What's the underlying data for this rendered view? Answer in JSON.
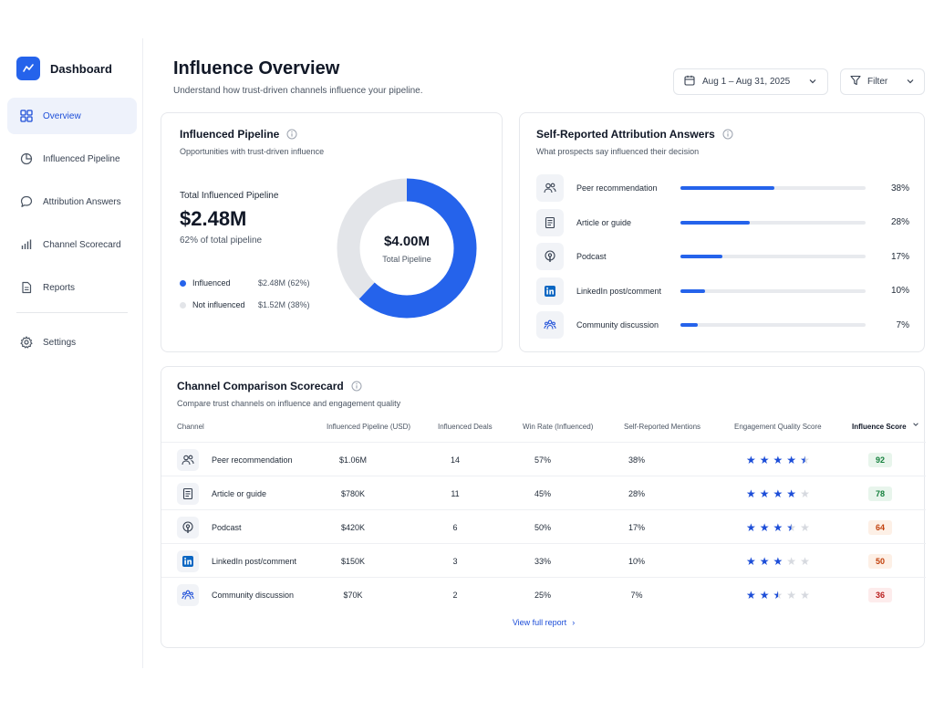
{
  "app": {
    "title": "Dashboard",
    "accent": "#2563eb"
  },
  "sidebar": {
    "items": [
      {
        "label": "Overview",
        "icon": "grid-icon",
        "active": true
      },
      {
        "label": "Influenced Pipeline",
        "icon": "pie-chart-icon"
      },
      {
        "label": "Attribution Answers",
        "icon": "chat-bubble-icon"
      },
      {
        "label": "Channel Scorecard",
        "icon": "bar-chart-icon"
      },
      {
        "label": "Reports",
        "icon": "document-icon"
      }
    ],
    "settings_label": "Settings"
  },
  "header": {
    "title": "Influence Overview",
    "subtitle": "Understand how trust-driven channels influence your pipeline.",
    "date_range": "Aug 1 – Aug 31, 2025",
    "filter_label": "Filter"
  },
  "pipeline": {
    "title": "Influenced Pipeline",
    "subtitle": "Opportunities with trust-driven influence",
    "total_label": "Total Influenced Pipeline",
    "total_value": "$2.48M",
    "total_pct": "62% of total pipeline",
    "donut_value": "$4.00M",
    "donut_label": "Total Pipeline",
    "legend": [
      {
        "name": "Influenced",
        "value": "$2.48M (62%)",
        "color": "#2563eb",
        "fraction": 0.62
      },
      {
        "name": "Not influenced",
        "value": "$1.52M (38%)",
        "color": "#e3e5e9",
        "fraction": 0.38
      }
    ]
  },
  "attribution": {
    "title": "Self-Reported Attribution Answers",
    "subtitle": "What prospects say influenced their decision",
    "rows": [
      {
        "name": "Peer recommendation",
        "pct": "38%",
        "fraction": 0.38,
        "icon": "people-icon"
      },
      {
        "name": "Article or guide",
        "pct": "28%",
        "fraction": 0.28,
        "icon": "article-icon"
      },
      {
        "name": "Podcast",
        "pct": "17%",
        "fraction": 0.17,
        "icon": "podcast-icon"
      },
      {
        "name": "LinkedIn post/comment",
        "pct": "10%",
        "fraction": 0.1,
        "icon": "linkedin-icon"
      },
      {
        "name": "Community discussion",
        "pct": "7%",
        "fraction": 0.07,
        "icon": "community-icon"
      }
    ]
  },
  "scorecard": {
    "title": "Channel Comparison Scorecard",
    "subtitle": "Compare trust channels on influence and engagement quality",
    "columns": [
      "Channel",
      "Influenced Pipeline (USD)",
      "Influenced Deals",
      "Win Rate (Influenced)",
      "Self-Reported Mentions",
      "Engagement Quality Score",
      "Influence Score"
    ],
    "rows": [
      {
        "channel": "Peer recommendation",
        "pipeline": "$1.06M",
        "deals": "14",
        "win_rate": "57%",
        "mentions": "38%",
        "stars": 4.5,
        "score": "92",
        "score_color": "#15803d",
        "score_bg": "#e8f5ec",
        "icon": "people-icon"
      },
      {
        "channel": "Article or guide",
        "pipeline": "$780K",
        "deals": "11",
        "win_rate": "45%",
        "mentions": "28%",
        "stars": 4,
        "score": "78",
        "score_color": "#15803d",
        "score_bg": "#e8f5ec",
        "icon": "article-icon"
      },
      {
        "channel": "Podcast",
        "pipeline": "$420K",
        "deals": "6",
        "win_rate": "50%",
        "mentions": "17%",
        "stars": 3.5,
        "score": "64",
        "score_color": "#c2410c",
        "score_bg": "#fdf0e6",
        "icon": "podcast-icon"
      },
      {
        "channel": "LinkedIn post/comment",
        "pipeline": "$150K",
        "deals": "3",
        "win_rate": "33%",
        "mentions": "10%",
        "stars": 3,
        "score": "50",
        "score_color": "#c2410c",
        "score_bg": "#fdf0e6",
        "icon": "linkedin-icon"
      },
      {
        "channel": "Community discussion",
        "pipeline": "$70K",
        "deals": "2",
        "win_rate": "25%",
        "mentions": "7%",
        "stars": 2.5,
        "score": "36",
        "score_color": "#b91c1c",
        "score_bg": "#fdecec",
        "icon": "community-icon"
      }
    ],
    "footer_link": "View full report"
  }
}
